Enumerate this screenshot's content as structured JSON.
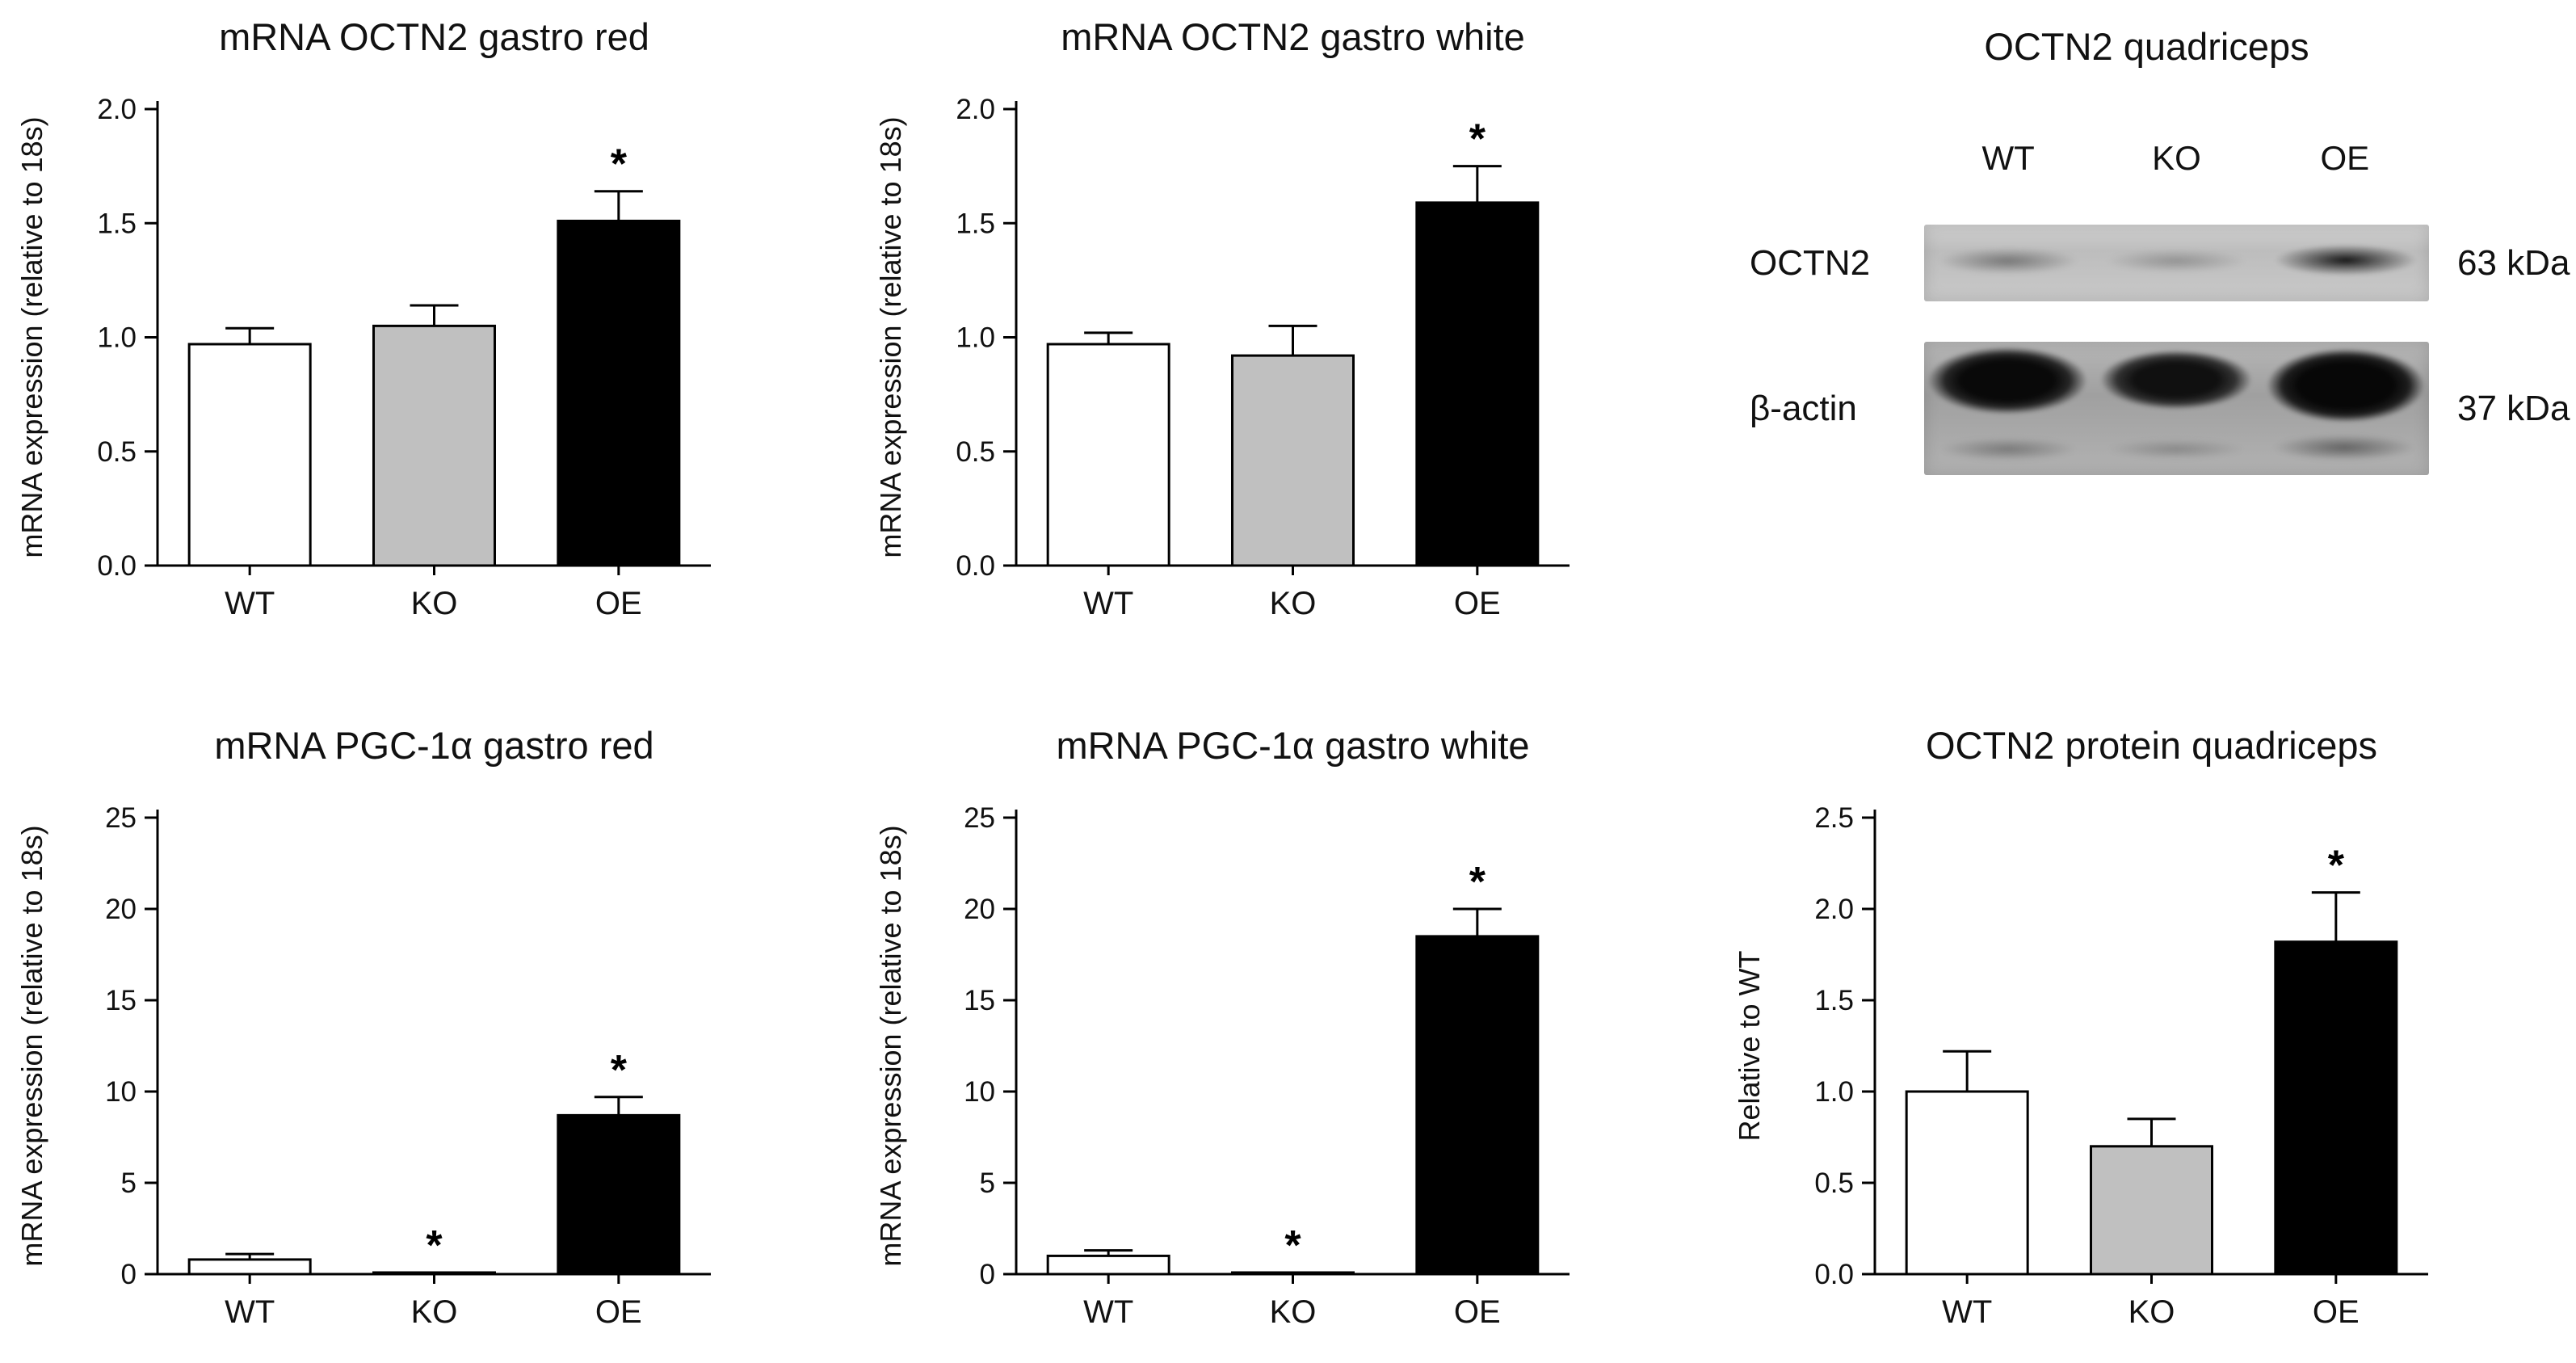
{
  "figure": {
    "background": "#ffffff",
    "bar_outline": "#000000",
    "group_colors": {
      "WT": "#ffffff",
      "KO": "#c0c0c0",
      "OE": "#000000"
    }
  },
  "chart_data": [
    {
      "type": "bar",
      "title": "mRNA OCTN2 gastro red",
      "xlabel": "",
      "ylabel": "mRNA expression (relative to 18s)",
      "categories": [
        "WT",
        "KO",
        "OE"
      ],
      "values": [
        0.97,
        1.05,
        1.51
      ],
      "errors": [
        0.07,
        0.09,
        0.13
      ],
      "significant": [
        false,
        false,
        true
      ],
      "sig_marker": "*",
      "ylim": [
        0,
        2.0
      ],
      "ytick_values": [
        0,
        0.5,
        1.0,
        1.5,
        2.0
      ],
      "ytick_labels": [
        "0.0",
        "0.5",
        "1.0",
        "1.5",
        "2.0"
      ],
      "bar_fills": [
        "#ffffff",
        "#c0c0c0",
        "#000000"
      ],
      "grid": false,
      "legend": "none"
    },
    {
      "type": "bar",
      "title": "mRNA OCTN2 gastro white",
      "xlabel": "",
      "ylabel": "mRNA expression (relative to 18s)",
      "categories": [
        "WT",
        "KO",
        "OE"
      ],
      "values": [
        0.97,
        0.92,
        1.59
      ],
      "errors": [
        0.05,
        0.13,
        0.16
      ],
      "significant": [
        false,
        false,
        true
      ],
      "sig_marker": "*",
      "ylim": [
        0,
        2.0
      ],
      "ytick_values": [
        0,
        0.5,
        1.0,
        1.5,
        2.0
      ],
      "ytick_labels": [
        "0.0",
        "0.5",
        "1.0",
        "1.5",
        "2.0"
      ],
      "bar_fills": [
        "#ffffff",
        "#c0c0c0",
        "#000000"
      ],
      "grid": false,
      "legend": "none"
    },
    {
      "type": "bar",
      "title": "mRNA PGC-1α gastro red",
      "xlabel": "",
      "ylabel": "mRNA expression (relative to 18s)",
      "categories": [
        "WT",
        "KO",
        "OE"
      ],
      "values": [
        0.8,
        0.05,
        8.7
      ],
      "errors": [
        0.3,
        0,
        1.0
      ],
      "significant": [
        false,
        true,
        true
      ],
      "sig_marker": "*",
      "ylim": [
        0,
        25
      ],
      "ytick_values": [
        0,
        5,
        10,
        15,
        20,
        25
      ],
      "ytick_labels": [
        "0",
        "5",
        "10",
        "15",
        "20",
        "25"
      ],
      "bar_fills": [
        "#ffffff",
        "#c0c0c0",
        "#000000"
      ],
      "grid": false,
      "legend": "none"
    },
    {
      "type": "bar",
      "title": "mRNA PGC-1α gastro white",
      "xlabel": "",
      "ylabel": "mRNA expression (relative to 18s)",
      "categories": [
        "WT",
        "KO",
        "OE"
      ],
      "values": [
        1.0,
        0.05,
        18.5
      ],
      "errors": [
        0.3,
        0,
        1.5
      ],
      "significant": [
        false,
        true,
        true
      ],
      "sig_marker": "*",
      "ylim": [
        0,
        25
      ],
      "ytick_values": [
        0,
        5,
        10,
        15,
        20,
        25
      ],
      "ytick_labels": [
        "0",
        "5",
        "10",
        "15",
        "20",
        "25"
      ],
      "bar_fills": [
        "#ffffff",
        "#c0c0c0",
        "#000000"
      ],
      "grid": false,
      "legend": "none"
    },
    {
      "type": "bar",
      "title": "OCTN2 protein quadriceps",
      "xlabel": "",
      "ylabel": "Relative to WT",
      "categories": [
        "WT",
        "KO",
        "OE"
      ],
      "values": [
        1.0,
        0.7,
        1.82
      ],
      "errors": [
        0.22,
        0.15,
        0.27
      ],
      "significant": [
        false,
        false,
        true
      ],
      "sig_marker": "*",
      "ylim": [
        0,
        2.5
      ],
      "ytick_values": [
        0,
        0.5,
        1.0,
        1.5,
        2.0,
        2.5
      ],
      "ytick_labels": [
        "0.0",
        "0.5",
        "1.0",
        "1.5",
        "2.0",
        "2.5"
      ],
      "bar_fills": [
        "#ffffff",
        "#c0c0c0",
        "#000000"
      ],
      "grid": false,
      "legend": "none"
    }
  ],
  "blot": {
    "title": "OCTN2 quadriceps",
    "lanes": [
      "WT",
      "KO",
      "OE"
    ],
    "rows": [
      {
        "label": "OCTN2",
        "weight": "63 kDa"
      },
      {
        "label": "β-actin",
        "weight": "37 kDa"
      }
    ]
  }
}
